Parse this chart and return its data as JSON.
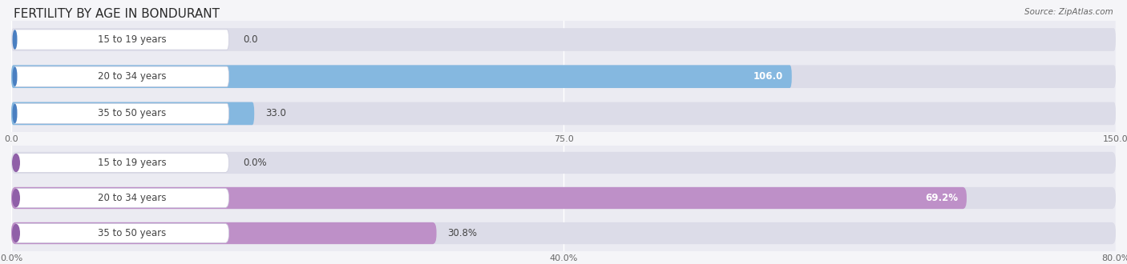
{
  "title": "FERTILITY BY AGE IN BONDURANT",
  "source": "Source: ZipAtlas.com",
  "chart1": {
    "categories": [
      "15 to 19 years",
      "20 to 34 years",
      "35 to 50 years"
    ],
    "values": [
      0.0,
      106.0,
      33.0
    ],
    "xlim": [
      0,
      150.0
    ],
    "xticks": [
      0.0,
      75.0,
      150.0
    ],
    "xticklabels": [
      "0.0",
      "75.0",
      "150.0"
    ],
    "bar_color": "#85b8e0",
    "bar_color_dark": "#4a7fc1",
    "bg_color": "#ebebf2"
  },
  "chart2": {
    "categories": [
      "15 to 19 years",
      "20 to 34 years",
      "35 to 50 years"
    ],
    "values": [
      0.0,
      69.2,
      30.8
    ],
    "xlim": [
      0,
      80.0
    ],
    "xticks": [
      0.0,
      40.0,
      80.0
    ],
    "xticklabels": [
      "0.0%",
      "40.0%",
      "80.0%"
    ],
    "bar_color": "#be90c8",
    "bar_color_dark": "#9060a8",
    "bg_color": "#ebebf2"
  },
  "fig_bg_color": "#f5f5f8",
  "bar_bg_color": "#dcdce8",
  "label_box_color": "#ffffff",
  "label_text_color": "#444444",
  "bar_height": 0.62,
  "title_fontsize": 11,
  "label_fontsize": 8.5,
  "tick_fontsize": 8,
  "source_fontsize": 7.5,
  "value_fontsize": 8.5,
  "grid_color": "#ffffff",
  "tick_color": "#666666"
}
